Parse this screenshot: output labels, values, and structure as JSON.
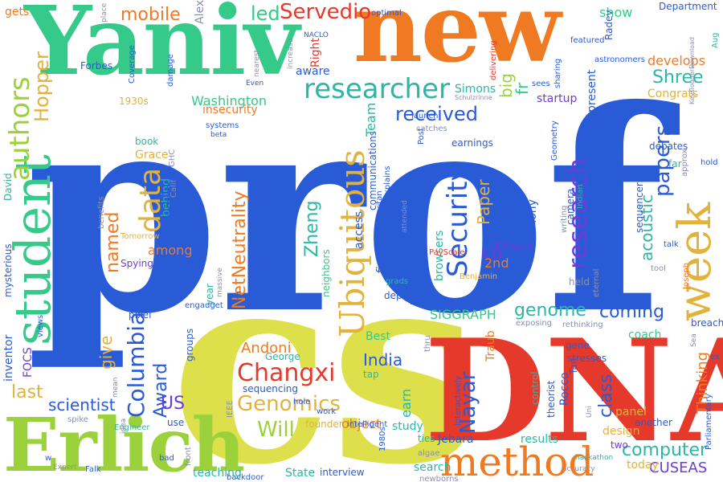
{
  "palette": {
    "blue": "#2a5bd7",
    "yellow": "#dde04a",
    "red": "#e53a2b",
    "orange": "#ef7a22",
    "green": "#35c98a",
    "lime": "#9bd23c",
    "gold": "#e3b23c",
    "teal": "#2bb7a6",
    "purple": "#6f3bd8",
    "gray": "#8a8fb0"
  },
  "words": [
    "prof",
    "cs",
    "DNA",
    "Yaniv",
    "new",
    "Erlich",
    "method",
    "student",
    "week",
    "researcher",
    "Ubiquitous",
    "Security",
    "research",
    "authors",
    "data",
    "NetNeutrality",
    "Changxi",
    "Genomics",
    "Columbia",
    "received",
    "papers",
    "Servedio",
    "mobile",
    "led",
    "Hopper",
    "Washington",
    "Shree",
    "coming",
    "genome",
    "computer",
    "CUSEAS",
    "scientist",
    "last",
    "give",
    "Award",
    "US",
    "Andoni",
    "George",
    "Will",
    "India",
    "Nayar",
    "class",
    "object",
    "Zheng",
    "Paper",
    "2nd",
    "co",
    "acoustic",
    "Thinking",
    "big",
    "fr",
    "startup",
    "present",
    "develops",
    "Congrats",
    "show",
    "Department",
    "Simons",
    "aware",
    "Right",
    "Alex",
    "gets",
    "named",
    "behind",
    "among",
    "Tomorrow",
    "Spying",
    "Grace",
    "book",
    "expression",
    "insecurity",
    "1930s",
    "FOCS",
    "inventor",
    "sequencing",
    "founder",
    "teaching",
    "State",
    "interview",
    "search",
    "results",
    "today",
    "panel",
    "design",
    "two",
    "earn",
    "tap",
    "study",
    "ties",
    "SIGGRAPH",
    "Best",
    "Jebara",
    "Rocco",
    "Traub",
    "theorist",
    "stresses",
    "control",
    "breach",
    "coach",
    "Mitigate",
    "Tony",
    "held",
    "sequencers",
    "first",
    "depart",
    "access",
    "neighbors",
    "communications",
    "browsers",
    "Team",
    "GHC",
    "Calif",
    "David",
    "mysterious",
    "pixel",
    "year",
    "groups",
    "engadget",
    "Falk",
    "spike",
    "Engineer",
    "bad",
    "use",
    "front",
    "backdoor",
    "IEEE",
    "hole",
    "1980s",
    "intelligent",
    "algae",
    "newborns",
    "accuracy",
    "hackathon",
    "another",
    "Parliamentary",
    "approx",
    "hold",
    "far",
    "debates",
    "sees",
    "Geometry",
    "Radev",
    "Aug",
    "featured",
    "optimal",
    "NACLO",
    "increase",
    "nearest",
    "Even",
    "damage",
    "Coverage",
    "Forbes",
    "place",
    "systems",
    "beta",
    "HotWireless",
    "Levitan",
    "explains",
    "PayScale",
    "Benjamin",
    "million",
    "Post",
    "earnings",
    "Schulzrinne",
    "catches",
    "launch",
    "sharing",
    "Indian",
    "writing",
    "camera",
    "eternal",
    "Joseph",
    "tool",
    "talk",
    "ex",
    "rethinking",
    "gene",
    "exposing",
    "Tan",
    "thru",
    "work",
    "idea",
    "mean",
    "views",
    "benefits",
    "massive",
    "F",
    "LI",
    "grads",
    "interactively",
    "attended",
    "delivering",
    "astronomers",
    "KeysloggerDownload",
    "Sea",
    "Uni",
    "w",
    "Expert"
  ]
}
